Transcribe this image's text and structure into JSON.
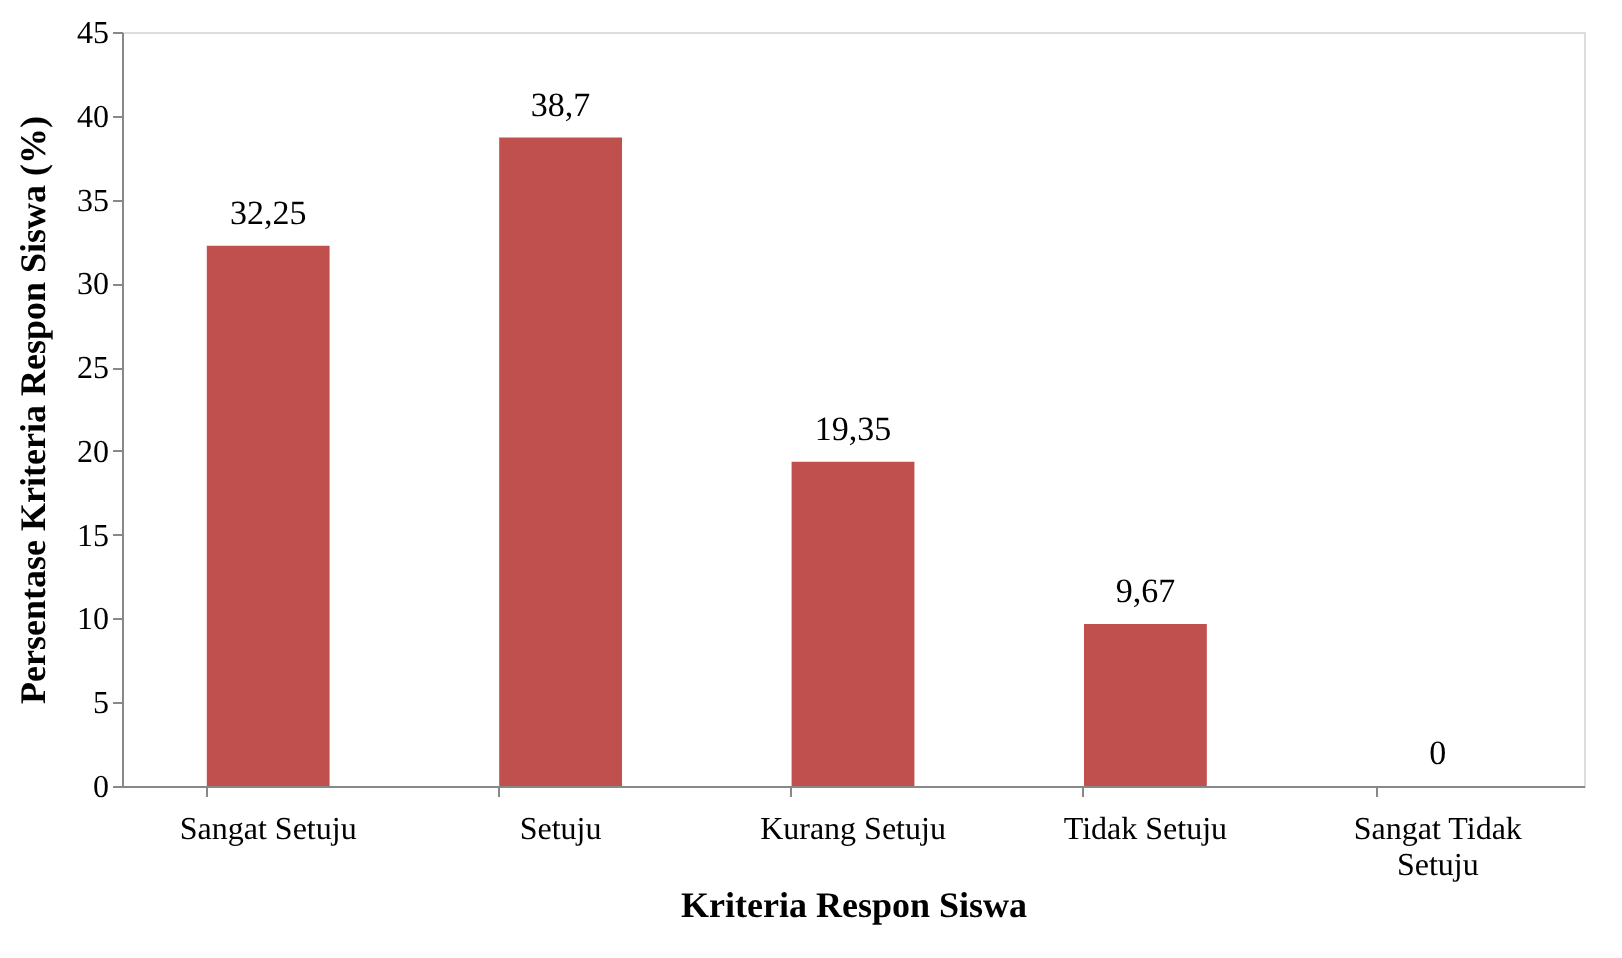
{
  "chart_data": {
    "type": "bar",
    "xlabel": "Kriteria Respon Siswa",
    "ylabel": "Persentase Kriteria Respon Siswa (%)",
    "categories": [
      "Sangat Setuju",
      "Setuju",
      "Kurang Setuju",
      "Tidak Setuju",
      "Sangat Tidak Setuju"
    ],
    "values": [
      32.25,
      38.7,
      19.35,
      9.67,
      0
    ],
    "value_labels": [
      "32,25",
      "38,7",
      "19,35",
      "9,67",
      "0"
    ],
    "color": "#c0504d",
    "ylim": [
      0,
      45
    ],
    "yticks": [
      0,
      5,
      10,
      15,
      20,
      25,
      30,
      35,
      40,
      45
    ],
    "grid": false
  }
}
